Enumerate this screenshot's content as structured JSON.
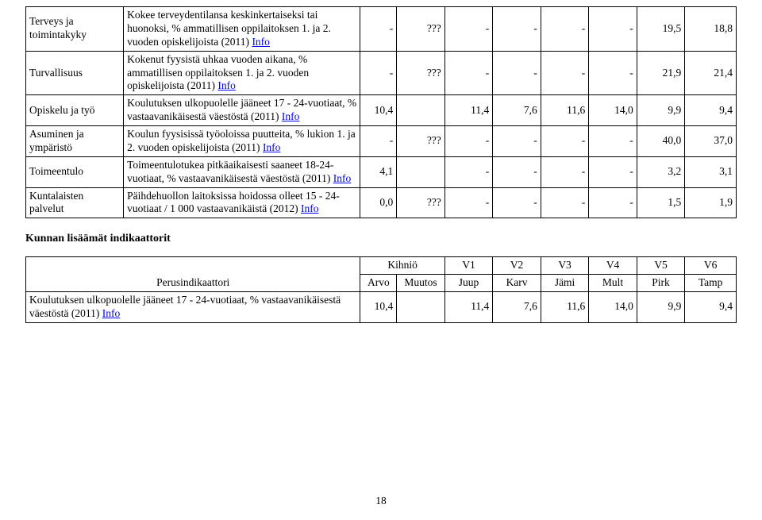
{
  "link_label": "Info",
  "table1": {
    "rows": [
      {
        "label": "Terveys ja toimintakyky",
        "desc": "Kokee terveydentilansa keskinkertaiseksi tai huonoksi, % ammatillisen oppilaitoksen 1. ja 2. vuoden opiskelijoista (2011) ",
        "vals": [
          "-",
          "???",
          "-",
          "-",
          "-",
          "-",
          "19,5",
          "18,8"
        ]
      },
      {
        "label": "Turvallisuus",
        "desc": "Kokenut fyysistä uhkaa vuoden aikana, % ammatillisen oppilaitoksen 1. ja 2. vuoden opiskelijoista (2011) ",
        "vals": [
          "-",
          "???",
          "-",
          "-",
          "-",
          "-",
          "21,9",
          "21,4"
        ]
      },
      {
        "label": "Opiskelu ja työ",
        "desc": "Koulutuksen ulkopuolelle jääneet 17 - 24-vuotiaat, % vastaavanikäisestä väestöstä (2011) ",
        "vals": [
          "10,4",
          "",
          "11,4",
          "7,6",
          "11,6",
          "14,0",
          "9,9",
          "9,4"
        ]
      },
      {
        "label": "Asuminen ja ympäristö",
        "desc": "Koulun fyysisissä työoloissa puutteita, % lukion 1. ja 2. vuoden opiskelijoista (2011) ",
        "vals": [
          "-",
          "???",
          "-",
          "-",
          "-",
          "-",
          "40,0",
          "37,0"
        ]
      },
      {
        "label": "Toimeentulo",
        "desc": "Toimeentulotukea pitkäaikaisesti saaneet 18-24-vuotiaat, % vastaavanikäisestä väestöstä (2011) ",
        "vals": [
          "4,1",
          "",
          "-",
          "-",
          "-",
          "-",
          "3,2",
          "3,1"
        ]
      },
      {
        "label": "Kuntalaisten palvelut",
        "desc": "Päihdehuollon laitoksissa hoidossa olleet 15 - 24-vuotiaat / 1 000 vastaavanikäistä (2012) ",
        "vals": [
          "0,0",
          "???",
          "-",
          "-",
          "-",
          "-",
          "1,5",
          "1,9"
        ]
      }
    ]
  },
  "section_heading": "Kunnan lisäämät indikaattorit",
  "table2": {
    "header": {
      "perus": "Perusindikaattori",
      "top": [
        "Kihniö",
        "V1",
        "V2",
        "V3",
        "V4",
        "V5",
        "V6"
      ],
      "bot": [
        "Arvo",
        "Muutos",
        "Juup",
        "Karv",
        "Jämi",
        "Mult",
        "Pirk",
        "Tamp"
      ]
    },
    "row": {
      "desc": "Koulutuksen ulkopuolelle jääneet 17 - 24-vuotiaat, % vastaavanikäisestä väestöstä (2011) ",
      "vals": [
        "10,4",
        "",
        "11,4",
        "7,6",
        "11,6",
        "14,0",
        "9,9",
        "9,4"
      ]
    }
  },
  "page_number": "18"
}
